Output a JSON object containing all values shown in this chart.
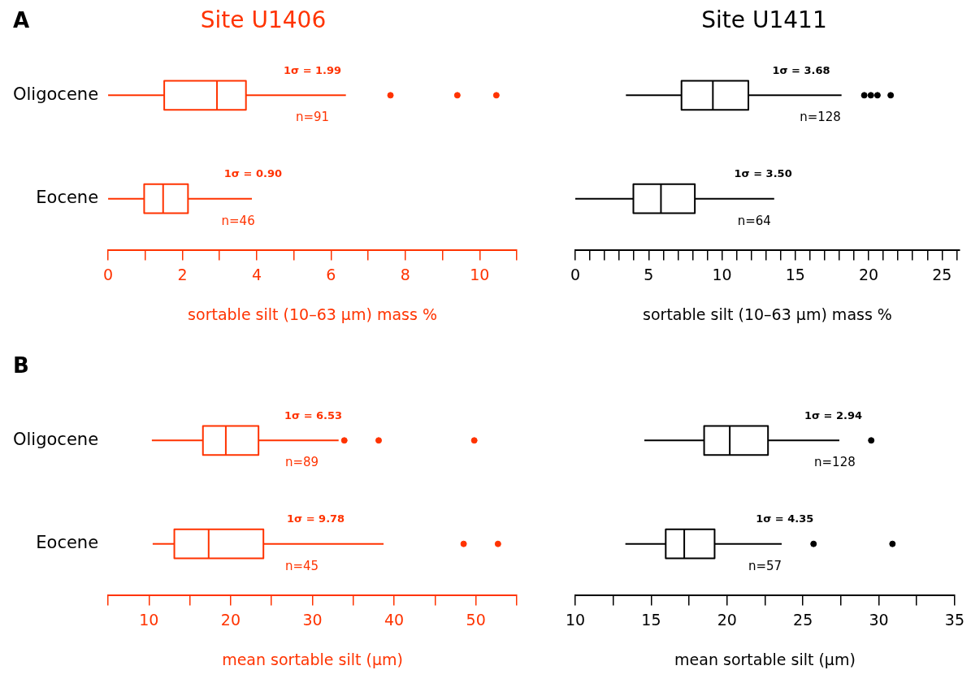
{
  "chart_data": [
    {
      "type": "box",
      "orientation": "horizontal",
      "title": "Site U1406",
      "xlabel": "sortable silt (10–63 μm) mass %",
      "color": "#ff3300",
      "categories": [
        "Oligocene",
        "Eocene"
      ],
      "grid": false,
      "legend": false,
      "boxes": [
        {
          "low": 0,
          "q1": 1.51,
          "median": 2.93,
          "q3": 3.71,
          "high": 6.4,
          "outliers": [
            7.6,
            9.4,
            10.45
          ]
        },
        {
          "low": 0,
          "q1": 0.97,
          "median": 1.48,
          "q3": 2.15,
          "high": 3.87
        }
      ],
      "xlim": [
        0,
        11
      ],
      "xticks": [
        0,
        {
          "value": 1,
          "label": null
        },
        2,
        {
          "value": 3,
          "label": null
        },
        4,
        {
          "value": 5,
          "label": null
        },
        6,
        {
          "value": 7,
          "label": null
        },
        8,
        {
          "value": 9,
          "label": null
        },
        10,
        {
          "value": 11,
          "label": null
        }
      ],
      "annotations": [
        "A",
        {
          "text": "1σ = 1.99",
          "x": 5.5,
          "y": "Oligocene"
        },
        {
          "text": "n=91",
          "x": 5.5,
          "y": "Oligocene"
        },
        {
          "text": "1σ = 0.90",
          "x": 3.9,
          "y": "Eocene"
        },
        {
          "text": "n=46",
          "x": 3.5,
          "y": "Eocene"
        }
      ]
    },
    {
      "type": "box",
      "orientation": "horizontal",
      "title": "Site U1411",
      "xlabel": "sortable silt (10–63 μm) mass %",
      "color": "#000000",
      "categories": [
        "Oligocene",
        "Eocene"
      ],
      "grid": false,
      "legend": false,
      "tick_labels": "x",
      "boxes": [
        {
          "low": 3.45,
          "q1": 7.24,
          "median": 9.38,
          "q3": 11.8,
          "high": 18.15,
          "outliers": [
            19.7,
            20.15,
            20.6,
            21.5
          ]
        },
        {
          "low": 0,
          "q1": 3.96,
          "median": 5.84,
          "q3": 8.15,
          "high": 13.56
        }
      ],
      "xlim": [
        0,
        26.2
      ],
      "xticks": [
        0,
        {
          "value": 1,
          "label": null
        },
        {
          "value": 2,
          "label": null
        },
        {
          "value": 3,
          "label": null
        },
        {
          "value": 4,
          "label": null
        },
        5,
        {
          "value": 6,
          "label": null
        },
        {
          "value": 7,
          "label": null
        },
        {
          "value": 8,
          "label": null
        },
        {
          "value": 9,
          "label": null
        },
        10,
        {
          "value": 11,
          "label": null
        },
        {
          "value": 12,
          "label": null
        },
        {
          "value": 13,
          "label": null
        },
        {
          "value": 14,
          "label": null
        },
        15,
        {
          "value": 16,
          "label": null
        },
        {
          "value": 17,
          "label": null
        },
        {
          "value": 18,
          "label": null
        },
        {
          "value": 19,
          "label": null
        },
        20,
        {
          "value": 21,
          "label": null
        },
        {
          "value": 22,
          "label": null
        },
        {
          "value": 23,
          "label": null
        },
        {
          "value": 24,
          "label": null
        },
        25,
        {
          "value": 26,
          "label": null
        }
      ],
      "annotations": [
        {
          "text": "1σ = 3.68",
          "x": 15.4,
          "y": "Oligocene"
        },
        {
          "text": "n=128",
          "x": 16.7,
          "y": "Oligocene"
        },
        {
          "text": "1σ = 3.50",
          "x": 12.8,
          "y": "Eocene"
        },
        {
          "text": "n=64",
          "x": 12.2,
          "y": "Eocene"
        }
      ]
    },
    {
      "type": "box",
      "orientation": "horizontal",
      "xlabel": "mean sortable silt (μm)",
      "color": "#ff3300",
      "categories": [
        "Oligocene",
        "Eocene"
      ],
      "grid": false,
      "legend": false,
      "boxes": [
        {
          "low": 10.35,
          "q1": 16.6,
          "median": 19.4,
          "q3": 23.4,
          "high": 33.2,
          "outliers": [
            33.9,
            38.1,
            49.8
          ]
        },
        {
          "low": 10.45,
          "q1": 13.1,
          "median": 17.3,
          "q3": 24.0,
          "high": 38.7,
          "outliers": [
            48.5,
            52.7
          ]
        }
      ],
      "xlim": [
        5,
        55
      ],
      "xticks": [
        {
          "value": 5,
          "label": null
        },
        10,
        {
          "value": 15,
          "label": null
        },
        20,
        {
          "value": 25,
          "label": null
        },
        30,
        {
          "value": 35,
          "label": null
        },
        40,
        {
          "value": 45,
          "label": null
        },
        50,
        {
          "value": 55,
          "label": null
        }
      ],
      "annotations": [
        "B",
        {
          "text": "1σ = 6.53",
          "x": 30.1,
          "y": "Oligocene"
        },
        {
          "text": "n=89",
          "x": 28.7,
          "y": "Oligocene"
        },
        {
          "text": "1σ = 9.78",
          "x": 30.4,
          "y": "Eocene"
        },
        {
          "text": "n=45",
          "x": 28.7,
          "y": "Eocene"
        }
      ]
    },
    {
      "type": "box",
      "orientation": "horizontal",
      "xlabel": "mean sortable silt (μm)",
      "color": "#000000",
      "categories": [
        "Oligocene",
        "Eocene"
      ],
      "grid": false,
      "legend": false,
      "tick_labels": "x",
      "boxes": [
        {
          "low": 14.55,
          "q1": 18.49,
          "median": 20.18,
          "q3": 22.7,
          "high": 27.4,
          "outliers": [
            29.5
          ]
        },
        {
          "low": 13.3,
          "q1": 15.96,
          "median": 17.18,
          "q3": 19.18,
          "high": 23.6,
          "outliers": [
            25.7,
            30.9
          ]
        }
      ],
      "xlim": [
        10,
        35
      ],
      "xticks": [
        10,
        {
          "value": 12.5,
          "label": null
        },
        15,
        {
          "value": 17.5,
          "label": null
        },
        20,
        {
          "value": 22.5,
          "label": null
        },
        25,
        {
          "value": 27.5,
          "label": null
        },
        30,
        {
          "value": 32.5,
          "label": null
        },
        35
      ],
      "annotations": [
        {
          "text": "1σ = 2.94",
          "x": 27.0,
          "y": "Oligocene"
        },
        {
          "text": "n=128",
          "x": 27.1,
          "y": "Oligocene"
        },
        {
          "text": "1σ = 4.35",
          "x": 23.8,
          "y": "Eocene"
        },
        {
          "text": "n=57",
          "x": 22.5,
          "y": "Eocene"
        }
      ]
    }
  ]
}
